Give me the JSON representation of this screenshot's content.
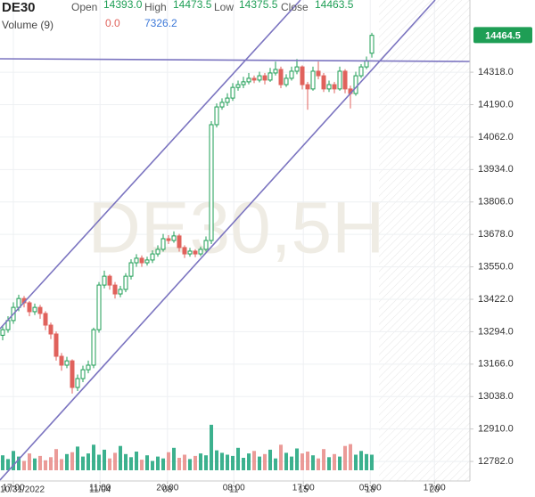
{
  "chart_data": {
    "type": "candlestick",
    "title": "DE30",
    "watermark": "DE30,5H",
    "header_fields": [
      {
        "name": "Open",
        "value": "14393.0"
      },
      {
        "name": "High",
        "value": "14473.5"
      },
      {
        "name": "Low",
        "value": "14375.5"
      },
      {
        "name": "Close",
        "value": "14463.5"
      }
    ],
    "volume_header": {
      "name": "Volume (9)",
      "values": [
        "0.0",
        "7326.2"
      ]
    },
    "last_price": {
      "value": 14464.5,
      "label": "14464.5"
    },
    "up_color": "#1e9e55",
    "down_color": "#e0625c",
    "x": [
      0,
      1,
      2,
      3,
      4,
      5,
      6,
      7,
      8,
      9,
      10,
      11,
      12,
      13,
      14,
      15,
      16,
      17,
      18,
      19,
      20,
      21,
      22,
      23,
      24,
      25,
      26,
      27,
      28,
      29,
      30,
      31,
      32,
      33,
      34,
      35,
      36,
      37,
      38,
      39,
      40,
      41,
      42,
      43,
      44,
      45,
      46,
      47,
      48,
      49,
      50,
      51,
      52,
      53,
      54,
      55,
      56,
      57,
      58,
      59,
      60,
      61,
      62,
      63,
      64,
      65,
      66,
      67,
      68,
      69
    ],
    "open": [
      13280,
      13302,
      13338,
      13390,
      13425,
      13408,
      13373,
      13390,
      13366,
      13320,
      13285,
      13197,
      13162,
      13179,
      13074,
      13109,
      13144,
      13162,
      13302,
      13478,
      13513,
      13478,
      13443,
      13461,
      13513,
      13566,
      13584,
      13566,
      13577,
      13601,
      13619,
      13661,
      13654,
      13672,
      13626,
      13601,
      13612,
      13601,
      13619,
      13654,
      14111,
      14181,
      14199,
      14216,
      14258,
      14269,
      14280,
      14294,
      14287,
      14304,
      14287,
      14315,
      14329,
      14269,
      14294,
      14322,
      14339,
      14269,
      14252,
      14322,
      14304,
      14252,
      14269,
      14252,
      14322,
      14252,
      14234,
      14304,
      14339,
      14393
    ],
    "high": [
      13320,
      13355,
      13410,
      13440,
      13435,
      13415,
      13405,
      13400,
      13375,
      13330,
      13295,
      13210,
      13195,
      13185,
      13125,
      13160,
      13180,
      13310,
      13490,
      13535,
      13520,
      13490,
      13475,
      13525,
      13580,
      13600,
      13595,
      13590,
      13615,
      13635,
      13680,
      13675,
      13690,
      13680,
      13635,
      13625,
      13620,
      13630,
      13670,
      14125,
      14195,
      14215,
      14235,
      14275,
      14285,
      14300,
      14315,
      14305,
      14320,
      14315,
      14335,
      14360,
      14340,
      14310,
      14340,
      14370,
      14345,
      14280,
      14340,
      14360,
      14315,
      14285,
      14280,
      14340,
      14330,
      14265,
      14320,
      14350,
      14380,
      14473.5
    ],
    "low": [
      13260,
      13290,
      13325,
      13375,
      13390,
      13355,
      13360,
      13345,
      13300,
      13265,
      13180,
      13140,
      13150,
      13050,
      13060,
      13095,
      13130,
      13150,
      13290,
      13465,
      13460,
      13425,
      13430,
      13450,
      13500,
      13550,
      13550,
      13555,
      13565,
      13590,
      13610,
      13640,
      13645,
      13610,
      13585,
      13590,
      13588,
      13592,
      13610,
      13640,
      14100,
      14170,
      14185,
      14205,
      14245,
      14255,
      14270,
      14275,
      14278,
      14270,
      14280,
      14305,
      14255,
      14260,
      14285,
      14310,
      14250,
      14170,
      14245,
      14290,
      14240,
      14240,
      14235,
      14245,
      14235,
      14175,
      14225,
      14295,
      14330,
      14375.5
    ],
    "close": [
      13302,
      13338,
      13390,
      13425,
      13408,
      13373,
      13390,
      13366,
      13320,
      13285,
      13197,
      13162,
      13179,
      13074,
      13109,
      13144,
      13162,
      13302,
      13478,
      13513,
      13478,
      13443,
      13461,
      13513,
      13566,
      13584,
      13566,
      13577,
      13601,
      13619,
      13661,
      13654,
      13672,
      13626,
      13601,
      13612,
      13601,
      13619,
      13654,
      14111,
      14181,
      14199,
      14216,
      14258,
      14269,
      14280,
      14294,
      14287,
      14304,
      14287,
      14315,
      14329,
      14269,
      14294,
      14322,
      14339,
      14269,
      14252,
      14322,
      14304,
      14252,
      14269,
      14252,
      14322,
      14252,
      14234,
      14304,
      14339,
      14364,
      14463.5
    ],
    "volume": {
      "values": [
        2400,
        1800,
        3100,
        2200,
        1500,
        2700,
        1900,
        2300,
        1600,
        2100,
        3400,
        1800,
        2600,
        2900,
        3800,
        2200,
        2700,
        4100,
        2500,
        3300,
        1900,
        2800,
        3900,
        2600,
        2100,
        3000,
        1700,
        2400,
        1500,
        2200,
        1900,
        2900,
        3600,
        2000,
        2500,
        1800,
        2300,
        2700,
        2400,
        7300,
        3200,
        2800,
        2500,
        2300,
        3600,
        2000,
        2700,
        3100,
        2200,
        2600,
        3300,
        1900,
        4100,
        2800,
        2200,
        3500,
        2700,
        3000,
        2400,
        1900,
        3400,
        2100,
        2600,
        2200,
        3900,
        4200,
        2500,
        3100,
        2600,
        2500
      ],
      "ylim": [
        0,
        10000
      ]
    },
    "xlim": [
      -0.5,
      87.33
    ],
    "xticks": [
      {
        "value": 2,
        "label": "17:00",
        "date": "10/31/2022"
      },
      {
        "value": 18.2,
        "label": "11:00",
        "date": "11/04"
      },
      {
        "value": 30.8,
        "label": "20:00",
        "date": "08"
      },
      {
        "value": 43.2,
        "label": "08:00",
        "date": "11"
      },
      {
        "value": 56.2,
        "label": "17:00",
        "date": "15"
      },
      {
        "value": 68.7,
        "label": "05:00",
        "date": "18"
      },
      {
        "value": 80.7,
        "label": "17:00",
        "date": "20"
      }
    ],
    "ylim": [
      12705,
      14603
    ],
    "yticks": [
      {
        "value": 12782,
        "label": "12782.0"
      },
      {
        "value": 12910,
        "label": "12910.0"
      },
      {
        "value": 13038,
        "label": "13038.0"
      },
      {
        "value": 13166,
        "label": "13166.0"
      },
      {
        "value": 13294,
        "label": "13294.0"
      },
      {
        "value": 13422,
        "label": "13422.0"
      },
      {
        "value": 13550,
        "label": "13550.0"
      },
      {
        "value": 13678,
        "label": "13678.0"
      },
      {
        "value": 13806,
        "label": "13806.0"
      },
      {
        "value": 13934,
        "label": "13934.0"
      },
      {
        "value": 14062,
        "label": "14062.0"
      },
      {
        "value": 14190,
        "label": "14190.0"
      },
      {
        "value": 14318,
        "label": "14318.0"
      }
    ],
    "grid": true
  }
}
